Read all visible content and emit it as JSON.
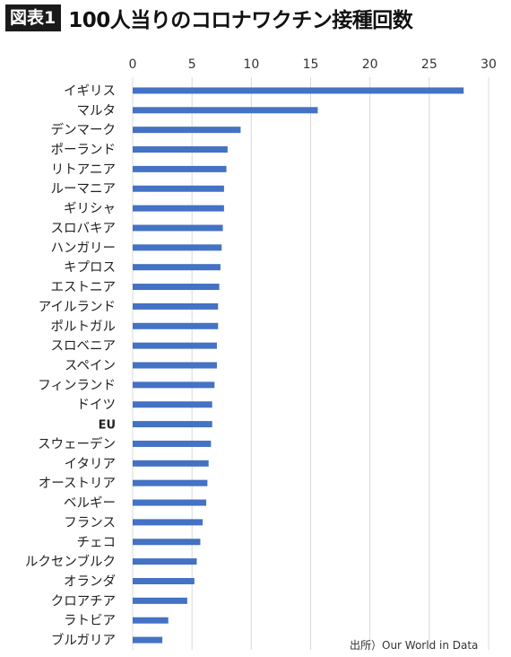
{
  "header": {
    "figure_label": "図表1",
    "title": "100人当りのコロナワクチン接種回数"
  },
  "source": "出所）Our World in Data",
  "colors": {
    "bar": "#4472c4",
    "grid": "#d9d9d9"
  },
  "chart_data": {
    "type": "bar",
    "orientation": "horizontal",
    "title": "100人当りのコロナワクチン接種回数",
    "xlim": [
      0,
      30
    ],
    "xticks": [
      0,
      5,
      10,
      15,
      20,
      25,
      30
    ],
    "grid": true,
    "legend": "none",
    "categories": [
      "イギリス",
      "マルタ",
      "デンマーク",
      "ポーランド",
      "リトアニア",
      "ルーマニア",
      "ギリシャ",
      "スロバキア",
      "ハンガリー",
      "キプロス",
      "エストニア",
      "アイルランド",
      "ポルトガル",
      "スロベニア",
      "スペイン",
      "フィンランド",
      "ドイツ",
      "EU",
      "スウェーデン",
      "イタリア",
      "オーストリア",
      "ベルギー",
      "フランス",
      "チェコ",
      "ルクセンブルク",
      "オランダ",
      "クロアチア",
      "ラトビア",
      "ブルガリア"
    ],
    "values": [
      27.9,
      15.6,
      9.1,
      8.0,
      7.9,
      7.7,
      7.7,
      7.6,
      7.5,
      7.4,
      7.3,
      7.2,
      7.2,
      7.1,
      7.1,
      6.9,
      6.7,
      6.7,
      6.6,
      6.4,
      6.3,
      6.2,
      5.9,
      5.7,
      5.4,
      5.2,
      4.6,
      3.0,
      2.5
    ]
  }
}
